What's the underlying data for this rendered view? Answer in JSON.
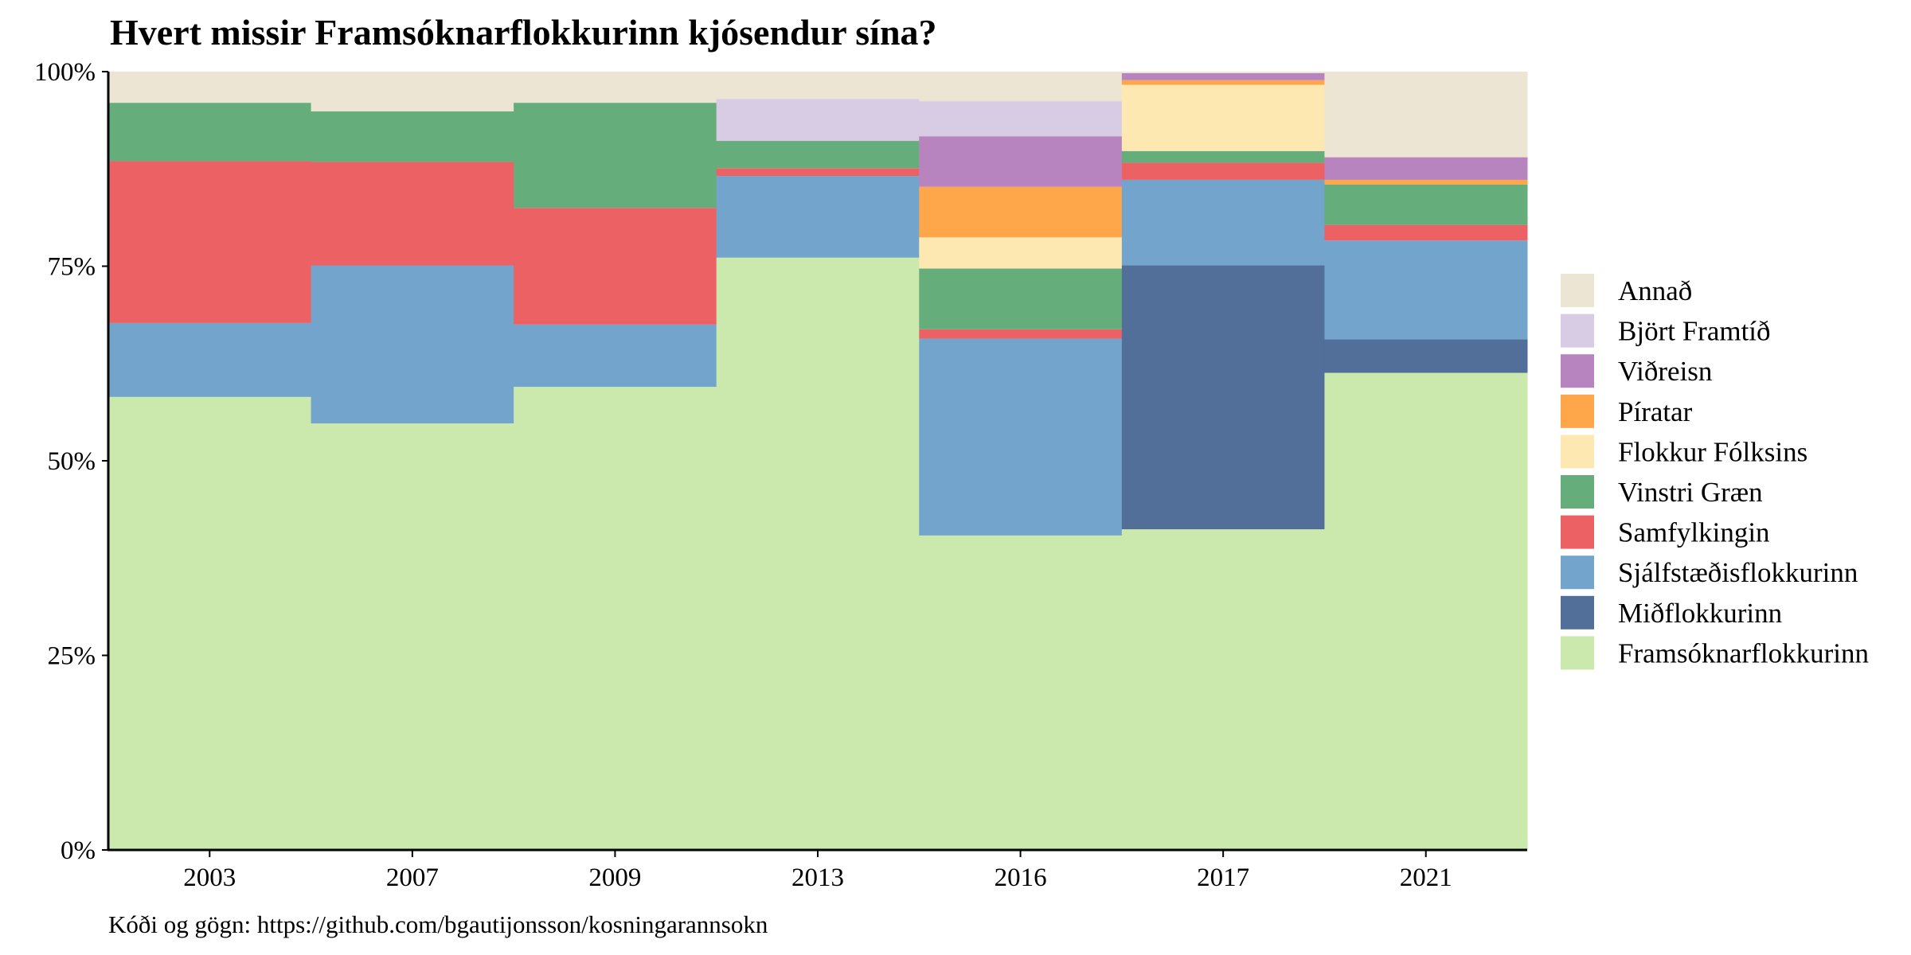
{
  "chart_data": {
    "type": "bar",
    "stacked": true,
    "normalized": true,
    "title": "Hvert missir Framsóknarflokkurinn kjósendur sína?",
    "caption": "Kóði og gögn: https://github.com/bgautijonsson/kosningarannsokn",
    "xlabel": "",
    "ylabel": "",
    "categories": [
      "2003",
      "2007",
      "2009",
      "2013",
      "2016",
      "2017",
      "2021"
    ],
    "y_ticks": [
      "0%",
      "25%",
      "50%",
      "75%",
      "100%"
    ],
    "ylim": [
      0,
      1
    ],
    "legend_position": "right",
    "series": [
      {
        "name": "Framsóknarflokkurinn",
        "color": "#cbe9ad",
        "values": [
          0.582,
          0.548,
          0.595,
          0.761,
          0.404,
          0.412,
          0.613
        ]
      },
      {
        "name": "Miðflokkurinn",
        "color": "#516f98",
        "values": [
          0,
          0,
          0,
          0,
          0,
          0.339,
          0.043
        ]
      },
      {
        "name": "Sjálfstæðisflokkurinn",
        "color": "#73a5cc",
        "values": [
          0.095,
          0.203,
          0.08,
          0.105,
          0.253,
          0.11,
          0.127
        ]
      },
      {
        "name": "Samfylkingin",
        "color": "#eb6164",
        "values": [
          0.208,
          0.133,
          0.15,
          0.01,
          0.012,
          0.022,
          0.02
        ]
      },
      {
        "name": "Vinstri Græn",
        "color": "#65ae7c",
        "values": [
          0.075,
          0.065,
          0.135,
          0.035,
          0.078,
          0.015,
          0.052
        ]
      },
      {
        "name": "Flokkur Fólksins",
        "color": "#fee8b2",
        "values": [
          0,
          0,
          0,
          0,
          0.04,
          0.085,
          0
        ]
      },
      {
        "name": "Píratar",
        "color": "#fea64a",
        "values": [
          0,
          0,
          0,
          0,
          0.065,
          0.006,
          0.006
        ]
      },
      {
        "name": "Viðreisn",
        "color": "#b784bf",
        "values": [
          0,
          0,
          0,
          0,
          0.065,
          0.009,
          0.029
        ]
      },
      {
        "name": "Björt Framtíð",
        "color": "#d8cbe4",
        "values": [
          0,
          0,
          0,
          0.054,
          0.045,
          0,
          0
        ]
      },
      {
        "name": "Annað",
        "color": "#ede5d3",
        "values": [
          0.04,
          0.051,
          0.04,
          0.035,
          0.038,
          0.002,
          0.11
        ]
      }
    ]
  }
}
